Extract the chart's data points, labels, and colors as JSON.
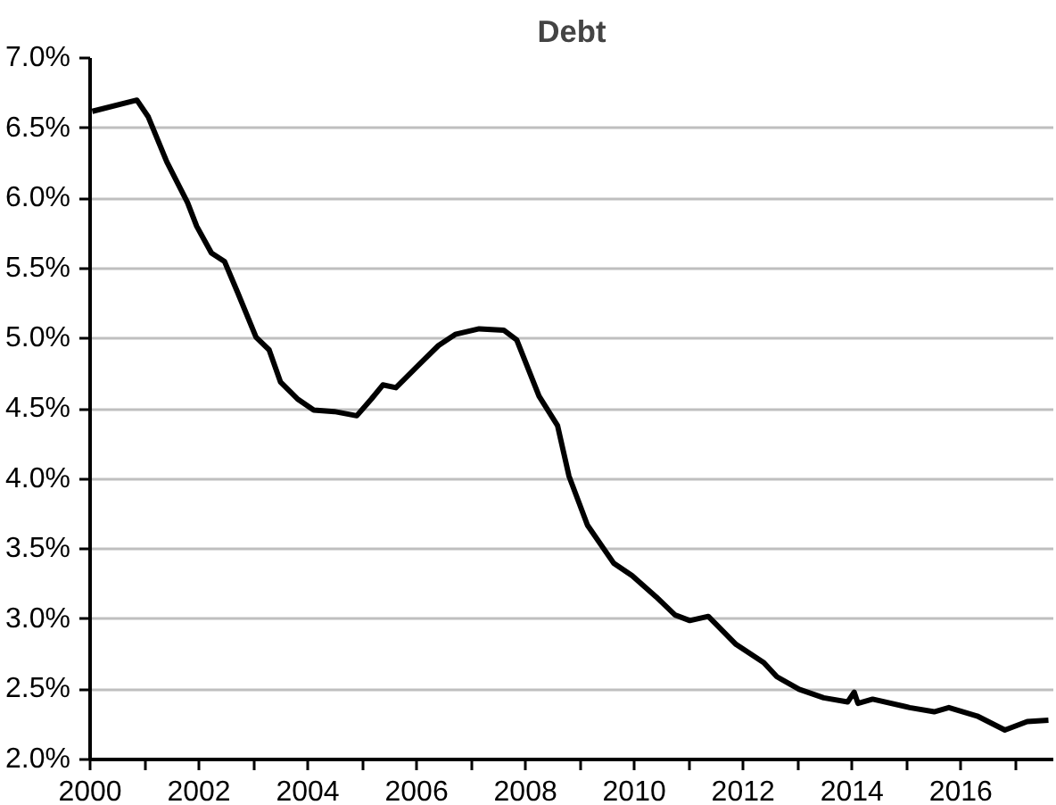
{
  "chart_data": {
    "type": "line",
    "title": "Debt",
    "grid": "y",
    "line_style": "solid",
    "xlim": [
      2000,
      2017.7
    ],
    "xticks": [
      2000,
      {
        "value": 2001,
        "label": null
      },
      2002,
      {
        "value": 2003,
        "label": null
      },
      2004,
      {
        "value": 2005,
        "label": null
      },
      2006,
      {
        "value": 2007,
        "label": null
      },
      2008,
      {
        "value": 2009,
        "label": null
      },
      2010,
      {
        "value": 2011,
        "label": null
      },
      2012,
      {
        "value": 2013,
        "label": null
      },
      2014,
      {
        "value": 2015,
        "label": null
      },
      2016,
      {
        "value": 2017,
        "label": null
      }
    ],
    "ylim": [
      2.0,
      7.0
    ],
    "yticks": [
      {
        "value": 2.0,
        "label": "2.0%"
      },
      {
        "value": 2.5,
        "label": "2.5%"
      },
      {
        "value": 3.0,
        "label": "3.0%"
      },
      {
        "value": 3.5,
        "label": "3.5%"
      },
      {
        "value": 4.0,
        "label": "4.0%"
      },
      {
        "value": 4.5,
        "label": "4.5%"
      },
      {
        "value": 5.0,
        "label": "5.0%"
      },
      {
        "value": 5.5,
        "label": "5.5%"
      },
      {
        "value": 6.0,
        "label": "6.0%"
      },
      {
        "value": 6.5,
        "label": "6.5%"
      },
      {
        "value": 7.0,
        "label": "7.0%"
      }
    ],
    "x": [
      2000.04,
      2000.86,
      2001.07,
      2001.41,
      2001.79,
      2001.96,
      2002.23,
      2002.47,
      2002.71,
      2003.05,
      2003.29,
      2003.5,
      2003.81,
      2004.11,
      2004.49,
      2004.9,
      2005.17,
      2005.38,
      2005.62,
      2006.06,
      2006.4,
      2006.71,
      2007.15,
      2007.6,
      2007.84,
      2008.25,
      2008.59,
      2008.8,
      2009.14,
      2009.62,
      2009.96,
      2010.4,
      2010.75,
      2011.02,
      2011.36,
      2011.87,
      2012.38,
      2012.62,
      2013.03,
      2013.48,
      2013.92,
      2014.04,
      2014.11,
      2014.38,
      2015.06,
      2015.51,
      2015.78,
      2016.3,
      2016.81,
      2017.22,
      2017.61
    ],
    "series": [
      {
        "color": "#000000",
        "values": [
          6.62,
          6.7,
          6.58,
          6.26,
          5.97,
          5.8,
          5.61,
          5.55,
          5.33,
          5.01,
          4.92,
          4.69,
          4.57,
          4.49,
          4.48,
          4.45,
          4.57,
          4.67,
          4.65,
          4.82,
          4.95,
          5.03,
          5.07,
          5.06,
          4.99,
          4.59,
          4.38,
          4.02,
          3.67,
          3.4,
          3.31,
          3.16,
          3.03,
          2.99,
          3.02,
          2.82,
          2.69,
          2.59,
          2.5,
          2.44,
          2.41,
          2.48,
          2.4,
          2.43,
          2.37,
          2.34,
          2.37,
          2.31,
          2.21,
          2.27,
          2.28
        ]
      }
    ]
  }
}
